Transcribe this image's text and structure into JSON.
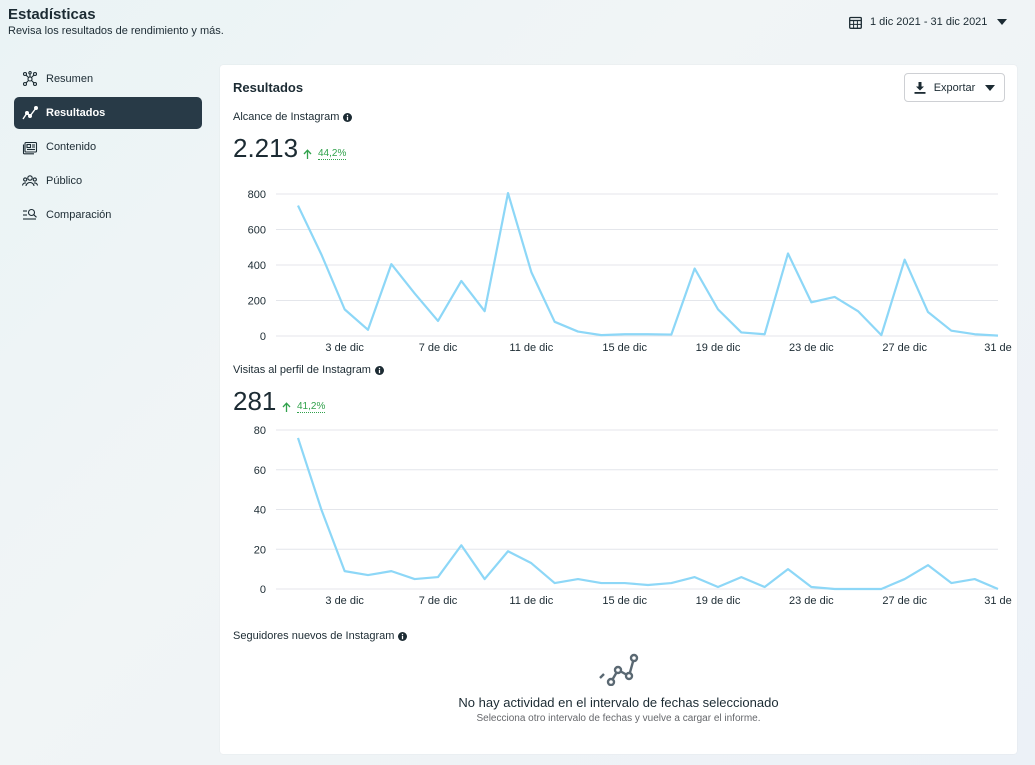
{
  "header": {
    "title": "Estadísticas",
    "subtitle": "Revisa los resultados de rendimiento y más.",
    "date_range": "1 dic 2021 - 31 dic 2021"
  },
  "sidebar": {
    "items": [
      {
        "label": "Resumen",
        "icon": "overview-icon",
        "active": false
      },
      {
        "label": "Resultados",
        "icon": "results-trend-icon",
        "active": true
      },
      {
        "label": "Contenido",
        "icon": "content-icon",
        "active": false
      },
      {
        "label": "Público",
        "icon": "audience-icon",
        "active": false
      },
      {
        "label": "Comparación",
        "icon": "comparison-icon",
        "active": false
      }
    ]
  },
  "results": {
    "title": "Resultados",
    "export_label": "Exportar",
    "reach": {
      "label": "Alcance de Instagram",
      "value": "2.213",
      "change": "44,2%"
    },
    "profile_visits": {
      "label": "Visitas al perfil de Instagram",
      "value": "281",
      "change": "41,2%"
    },
    "new_followers": {
      "label": "Seguidores nuevos de Instagram",
      "empty_title": "No hay actividad en el intervalo de fechas seleccionado",
      "empty_subtitle": "Selecciona otro intervalo de fechas y vuelve a cargar el informe."
    }
  },
  "colors": {
    "line": "#8dd7f7",
    "active_nav": "#283a47",
    "positive": "#31a24c",
    "grid": "#e4e6eb"
  },
  "chart_data": [
    {
      "type": "line",
      "title": "Alcance de Instagram",
      "x": [
        1,
        2,
        3,
        4,
        5,
        6,
        7,
        8,
        9,
        10,
        11,
        12,
        13,
        14,
        15,
        16,
        17,
        18,
        19,
        20,
        21,
        22,
        23,
        24,
        25,
        26,
        27,
        28,
        29,
        30,
        31
      ],
      "x_tick_labels": [
        "3 de dic",
        "7 de dic",
        "11 de dic",
        "15 de dic",
        "19 de dic",
        "23 de dic",
        "27 de dic",
        "31 de"
      ],
      "x_tick_positions": [
        3,
        7,
        11,
        15,
        19,
        23,
        27,
        31
      ],
      "values": [
        735,
        460,
        150,
        35,
        405,
        240,
        85,
        310,
        140,
        805,
        360,
        80,
        25,
        5,
        10,
        10,
        8,
        380,
        150,
        20,
        10,
        465,
        190,
        220,
        140,
        5,
        430,
        135,
        30,
        10,
        2
      ],
      "ylim": [
        0,
        800
      ],
      "y_ticks": [
        0,
        200,
        400,
        600,
        800
      ],
      "grid": true
    },
    {
      "type": "line",
      "title": "Visitas al perfil de Instagram",
      "x": [
        1,
        2,
        3,
        4,
        5,
        6,
        7,
        8,
        9,
        10,
        11,
        12,
        13,
        14,
        15,
        16,
        17,
        18,
        19,
        20,
        21,
        22,
        23,
        24,
        25,
        26,
        27,
        28,
        29,
        30,
        31
      ],
      "x_tick_labels": [
        "3 de dic",
        "7 de dic",
        "11 de dic",
        "15 de dic",
        "19 de dic",
        "23 de dic",
        "27 de dic",
        "31 de"
      ],
      "x_tick_positions": [
        3,
        7,
        11,
        15,
        19,
        23,
        27,
        31
      ],
      "values": [
        76,
        40,
        9,
        7,
        9,
        5,
        6,
        22,
        5,
        19,
        13,
        3,
        5,
        3,
        3,
        2,
        3,
        6,
        1,
        6,
        1,
        10,
        1,
        0,
        0,
        0,
        5,
        12,
        3,
        5,
        0
      ],
      "ylim": [
        0,
        80
      ],
      "y_ticks": [
        0,
        20,
        40,
        60,
        80
      ],
      "grid": true
    }
  ]
}
